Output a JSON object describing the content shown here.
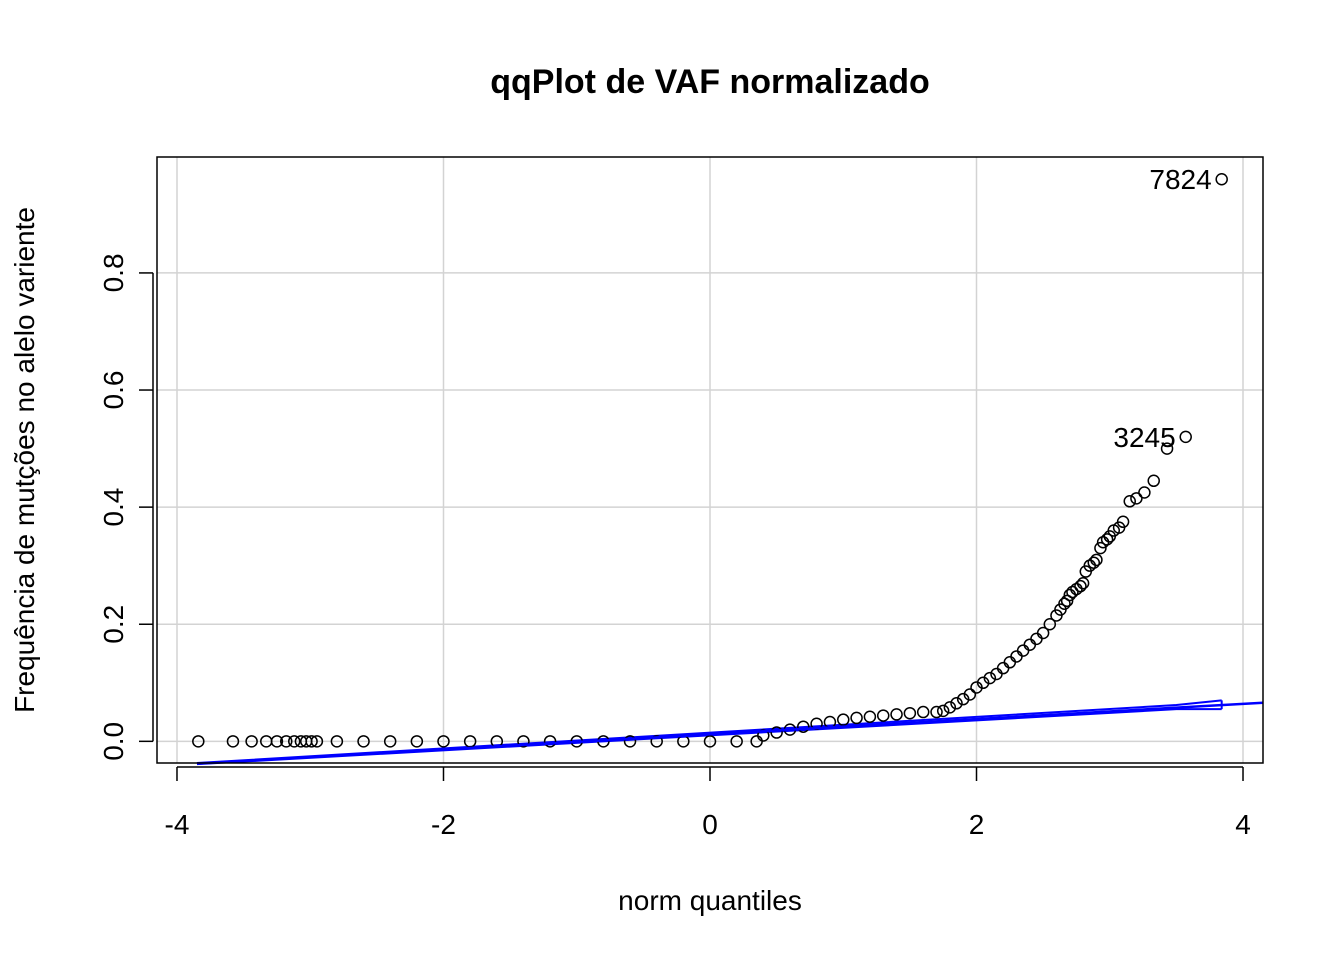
{
  "chart_data": {
    "type": "scatter",
    "title": "qqPlot de VAF normalizado",
    "xlabel": "norm quantiles",
    "ylabel": "Frequência de mutções no alelo variente",
    "xlim": [
      -4.15,
      4.15
    ],
    "ylim": [
      -0.037,
      0.998
    ],
    "x_ticks": [
      -4,
      -2,
      0,
      2,
      4
    ],
    "x_tick_labels": [
      "-4",
      "-2",
      "0",
      "2",
      "4"
    ],
    "y_ticks": [
      0.0,
      0.2,
      0.4,
      0.6,
      0.8
    ],
    "y_tick_labels": [
      "0.0",
      "0.2",
      "0.4",
      "0.6",
      "0.8"
    ],
    "grid": true,
    "colors": {
      "points": "#000000",
      "reference_line": "#0000ff",
      "grid": "#d3d3d3"
    },
    "reference_line": {
      "x": [
        -3.85,
        4.15
      ],
      "y": [
        -0.038,
        0.066
      ]
    },
    "confidence_band_upper": {
      "x": [
        -3.85,
        3.5,
        3.84
      ],
      "y": [
        -0.037,
        0.062,
        0.07
      ]
    },
    "confidence_band_lower": {
      "x": [
        -3.85,
        3.5,
        3.84
      ],
      "y": [
        -0.039,
        0.055,
        0.055
      ]
    },
    "series": [
      {
        "x": [
          -3.84,
          -3.58,
          -3.44,
          -3.33,
          -3.25,
          -3.18,
          -3.12,
          -3.07,
          -3.03,
          -2.99,
          -2.95,
          -2.8,
          -2.6,
          -2.4,
          -2.2,
          -2.0,
          -1.8,
          -1.6,
          -1.4,
          -1.2,
          -1.0,
          -0.8,
          -0.6,
          -0.4,
          -0.2,
          0.0,
          0.2,
          0.35,
          0.4,
          0.5,
          0.6,
          0.7,
          0.8,
          0.9,
          1.0,
          1.1,
          1.2,
          1.3,
          1.4,
          1.5,
          1.6,
          1.7,
          1.75,
          1.8,
          1.85,
          1.9,
          1.95,
          2.0,
          2.05,
          2.1,
          2.15,
          2.2,
          2.25,
          2.3,
          2.35,
          2.4,
          2.45,
          2.5,
          2.55,
          2.6,
          2.63,
          2.66,
          2.68,
          2.7,
          2.72,
          2.75,
          2.78,
          2.8,
          2.82,
          2.85,
          2.88,
          2.9,
          2.93,
          2.95,
          2.98,
          3.0,
          3.03,
          3.07,
          3.1,
          3.15,
          3.2,
          3.26,
          3.33,
          3.43,
          3.57,
          3.84
        ],
        "y": [
          0.0,
          0.0,
          0.0,
          0.0,
          0.0,
          0.0,
          0.0,
          0.0,
          0.0,
          0.0,
          0.0,
          0.0,
          0.0,
          0.0,
          0.0,
          0.0,
          0.0,
          0.0,
          0.0,
          0.0,
          0.0,
          0.0,
          0.0,
          0.0,
          0.0,
          0.0,
          0.0,
          0.0,
          0.01,
          0.015,
          0.02,
          0.025,
          0.03,
          0.033,
          0.037,
          0.04,
          0.042,
          0.044,
          0.046,
          0.048,
          0.05,
          0.05,
          0.052,
          0.058,
          0.065,
          0.072,
          0.08,
          0.092,
          0.1,
          0.108,
          0.115,
          0.125,
          0.135,
          0.145,
          0.155,
          0.165,
          0.175,
          0.185,
          0.2,
          0.215,
          0.225,
          0.235,
          0.24,
          0.25,
          0.255,
          0.26,
          0.265,
          0.27,
          0.29,
          0.3,
          0.305,
          0.31,
          0.33,
          0.34,
          0.345,
          0.35,
          0.36,
          0.365,
          0.375,
          0.41,
          0.415,
          0.425,
          0.445,
          0.5,
          0.52,
          0.96
        ]
      }
    ],
    "annotations": [
      {
        "text": "7824",
        "x": 3.84,
        "y": 0.96
      },
      {
        "text": "3245",
        "x": 3.57,
        "y": 0.52
      }
    ]
  }
}
